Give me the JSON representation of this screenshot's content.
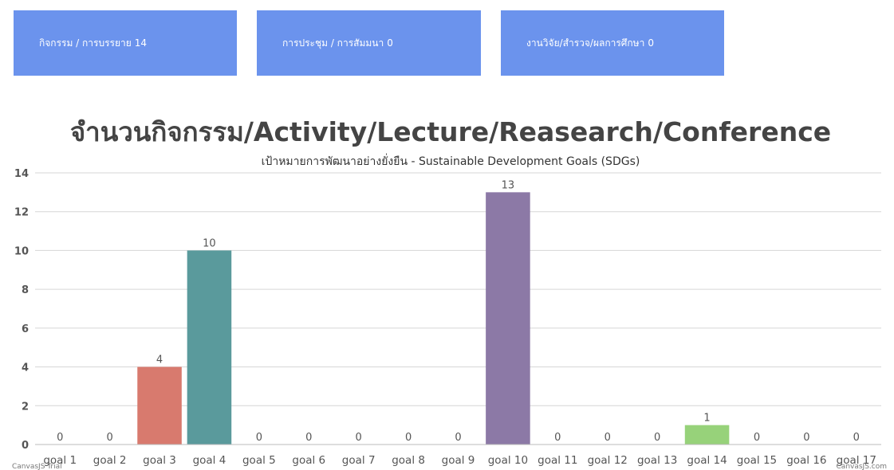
{
  "cards": [
    {
      "label": "กิจกรรม / การบรรยาย",
      "value": "14",
      "color": "#6b93ed"
    },
    {
      "label": "การประชุม / การสัมมนา",
      "value": "0",
      "color": "#6b93ed"
    },
    {
      "label": "งานวิจัย/สำรวจ/ผลการศึกษา",
      "value": "0",
      "color": "#6b93ed"
    }
  ],
  "chart_data": {
    "type": "bar",
    "title": "จำนวนกิจกรรม/Activity/Lecture/Reasearch/Conference",
    "subtitle": "เป้าหมายการพัฒนาอย่างยั่งยืน - Sustainable Development Goals (SDGs)",
    "xlabel": "",
    "ylabel": "",
    "ylim": [
      0,
      14
    ],
    "yticks": [
      0,
      2,
      4,
      6,
      8,
      10,
      12,
      14
    ],
    "grid": true,
    "categories": [
      "goal 1",
      "goal 2",
      "goal 3",
      "goal 4",
      "goal 5",
      "goal 6",
      "goal 7",
      "goal 8",
      "goal 9",
      "goal 10",
      "goal 11",
      "goal 12",
      "goal 13",
      "goal 14",
      "goal 15",
      "goal 16",
      "goal 17"
    ],
    "values": [
      0,
      0,
      4,
      10,
      0,
      0,
      0,
      0,
      0,
      13,
      0,
      0,
      0,
      1,
      0,
      0,
      0
    ],
    "bar_colors": {
      "goal 3": "#d87a6e",
      "goal 4": "#5a9a9c",
      "goal 10": "#8c79a6",
      "goal 14": "#97d27a"
    },
    "credits": {
      "left": "CanvasJS Trial",
      "right": "CanvasJS.com"
    }
  }
}
